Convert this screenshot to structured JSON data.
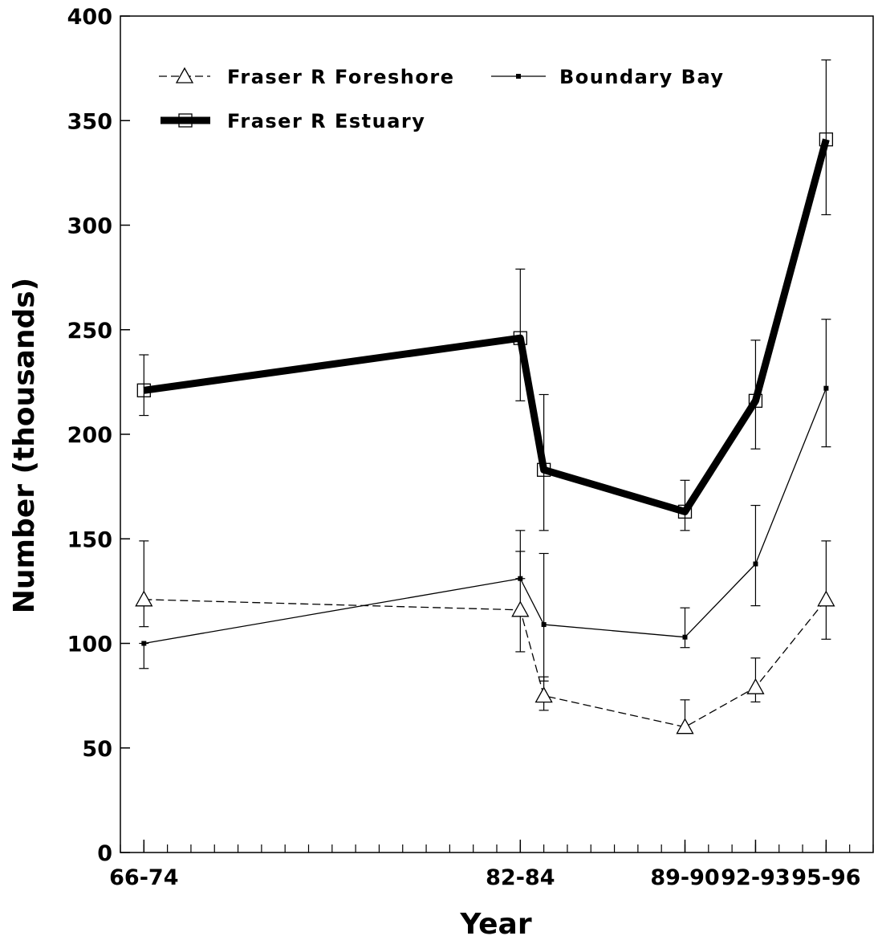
{
  "chart_data": {
    "type": "line",
    "xlabel": "Year",
    "ylabel": "Number (thousands)",
    "ylim": [
      0,
      400
    ],
    "yticks": [
      0,
      50,
      100,
      150,
      200,
      250,
      300,
      350,
      400
    ],
    "x_tick_labels": [
      "66-74",
      "82-84",
      "89-90",
      "92-93",
      "95-96"
    ],
    "x_axis_range": [
      1965,
      1997
    ],
    "x_tick_positions": [
      1966,
      1982,
      1989,
      1992,
      1995
    ],
    "grid": false,
    "legend_placement": "top-left",
    "series": [
      {
        "name": "Fraser R Foreshore",
        "marker": "triangle",
        "line_style": "dashed-thin",
        "color": "#000000",
        "points": [
          {
            "x": 1966,
            "y": 121,
            "lo": 108,
            "hi": 149
          },
          {
            "x": 1982,
            "y": 116,
            "lo": 96,
            "hi": 144
          },
          {
            "x": 1983,
            "y": 75,
            "lo": 68,
            "hi": 84
          },
          {
            "x": 1989,
            "y": 60,
            "lo": 59,
            "hi": 73
          },
          {
            "x": 1992,
            "y": 79,
            "lo": 72,
            "hi": 93
          },
          {
            "x": 1995,
            "y": 121,
            "lo": 102,
            "hi": 149
          }
        ]
      },
      {
        "name": "Boundary Bay",
        "marker": "small-square",
        "line_style": "solid-thin",
        "color": "#000000",
        "points": [
          {
            "x": 1966,
            "y": 100,
            "lo": 88,
            "hi": 100
          },
          {
            "x": 1982,
            "y": 131,
            "lo": 131,
            "hi": 154
          },
          {
            "x": 1983,
            "y": 109,
            "lo": 82,
            "hi": 143
          },
          {
            "x": 1989,
            "y": 103,
            "lo": 98,
            "hi": 117
          },
          {
            "x": 1992,
            "y": 138,
            "lo": 118,
            "hi": 166
          },
          {
            "x": 1995,
            "y": 222,
            "lo": 194,
            "hi": 255
          }
        ]
      },
      {
        "name": "Fraser R Estuary",
        "marker": "open-square",
        "line_style": "solid-thick",
        "color": "#000000",
        "points": [
          {
            "x": 1966,
            "y": 221,
            "lo": 209,
            "hi": 238
          },
          {
            "x": 1982,
            "y": 246,
            "lo": 216,
            "hi": 279
          },
          {
            "x": 1983,
            "y": 183,
            "lo": 154,
            "hi": 219
          },
          {
            "x": 1989,
            "y": 163,
            "lo": 154,
            "hi": 178
          },
          {
            "x": 1992,
            "y": 216,
            "lo": 193,
            "hi": 245
          },
          {
            "x": 1995,
            "y": 341,
            "lo": 305,
            "hi": 379
          }
        ]
      }
    ]
  }
}
